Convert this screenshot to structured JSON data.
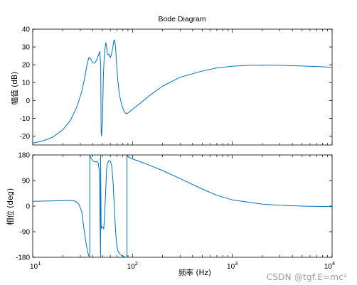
{
  "chart_data": [
    {
      "type": "line",
      "title": "Bode Diagram",
      "ylabel": "幅值 (dB)",
      "xlabel": "",
      "xscale": "log",
      "xlim": [
        10,
        10000
      ],
      "ylim": [
        -25,
        40
      ],
      "yticks": [
        "40",
        "30",
        "20",
        "10",
        "0",
        "-10",
        "-20"
      ],
      "ytick_values": [
        40,
        30,
        20,
        10,
        0,
        -10,
        -20
      ],
      "grid": false,
      "color": "#0072bd",
      "series": [
        {
          "x": [
            10,
            13,
            16,
            20,
            24,
            28,
            31,
            33,
            35,
            36.5,
            38,
            40,
            42,
            44,
            46,
            47,
            48,
            48.5,
            49,
            49.5,
            50,
            51,
            52,
            53,
            54,
            55,
            56,
            57,
            58,
            60,
            62,
            64,
            65,
            66,
            67,
            68,
            69,
            71,
            74,
            78,
            82,
            86,
            90,
            100,
            120,
            150,
            200,
            300,
            500,
            700,
            1000,
            1500,
            2000,
            3000,
            5000,
            7000,
            10000
          ],
          "y": [
            -24,
            -22.5,
            -20.5,
            -16.5,
            -11,
            -3,
            5,
            12,
            20,
            24,
            23.5,
            21,
            21,
            23,
            26,
            27.5,
            20,
            -18,
            -20,
            -15,
            -12,
            13,
            24,
            29,
            32.5,
            30,
            26,
            25.5,
            26,
            24,
            26.5,
            31,
            33.5,
            34,
            32,
            28,
            22,
            12,
            3,
            -2.5,
            -6,
            -7.5,
            -7,
            -5,
            -1.5,
            3,
            8,
            13,
            16.5,
            18.2,
            19.2,
            19.7,
            19.8,
            19.7,
            19.3,
            19.0,
            18.6
          ]
        }
      ]
    },
    {
      "type": "line",
      "title": "",
      "ylabel": "相位 (deg)",
      "xlabel": "频率 (Hz)",
      "xscale": "log",
      "xlim": [
        10,
        10000
      ],
      "ylim": [
        -180,
        180
      ],
      "yticks": [
        "180",
        "90",
        "0",
        "-90",
        "-180"
      ],
      "ytick_values": [
        180,
        90,
        0,
        -90,
        -180
      ],
      "xticks": [
        {
          "base": "10",
          "exp": "1",
          "value": 10
        },
        {
          "base": "10",
          "exp": "2",
          "value": 100
        },
        {
          "base": "10",
          "exp": "3",
          "value": 1000
        },
        {
          "base": "10",
          "exp": "4",
          "value": 10000
        }
      ],
      "grid": false,
      "color": "#0072bd",
      "series": [
        {
          "x": [
            10,
            15,
            20,
            24,
            27,
            29,
            31,
            32.5,
            34,
            35.5,
            36.5,
            37.3,
            37.3,
            38.5,
            40,
            42,
            44,
            45.5,
            46.5,
            47.5,
            47.9,
            47.9,
            48.5,
            49.5,
            50.5,
            51.5,
            52.5,
            54,
            55,
            56,
            58,
            60,
            62,
            64,
            66,
            68,
            70,
            72,
            75,
            79,
            83,
            86,
            88,
            88,
            89,
            92,
            100,
            120,
            150,
            200,
            300,
            500,
            700,
            1000,
            2000,
            3000,
            5000,
            7000,
            10000
          ],
          "y": [
            17,
            18,
            19,
            20,
            17,
            7,
            -20,
            -75,
            -125,
            -160,
            -175,
            -180,
            180,
            168,
            160,
            155,
            157,
            150,
            120,
            -90,
            -180,
            180,
            -80,
            -72,
            -75,
            -80,
            -30,
            60,
            130,
            150,
            160,
            158,
            140,
            80,
            -20,
            -100,
            -145,
            -160,
            -170,
            -175,
            -178,
            -180,
            -180,
            180,
            176,
            172,
            166,
            156,
            143,
            125,
            97,
            60,
            38,
            22,
            7,
            3,
            0,
            -1,
            -2
          ]
        }
      ]
    }
  ],
  "watermark": "CSDN @tgf.E=mc²"
}
